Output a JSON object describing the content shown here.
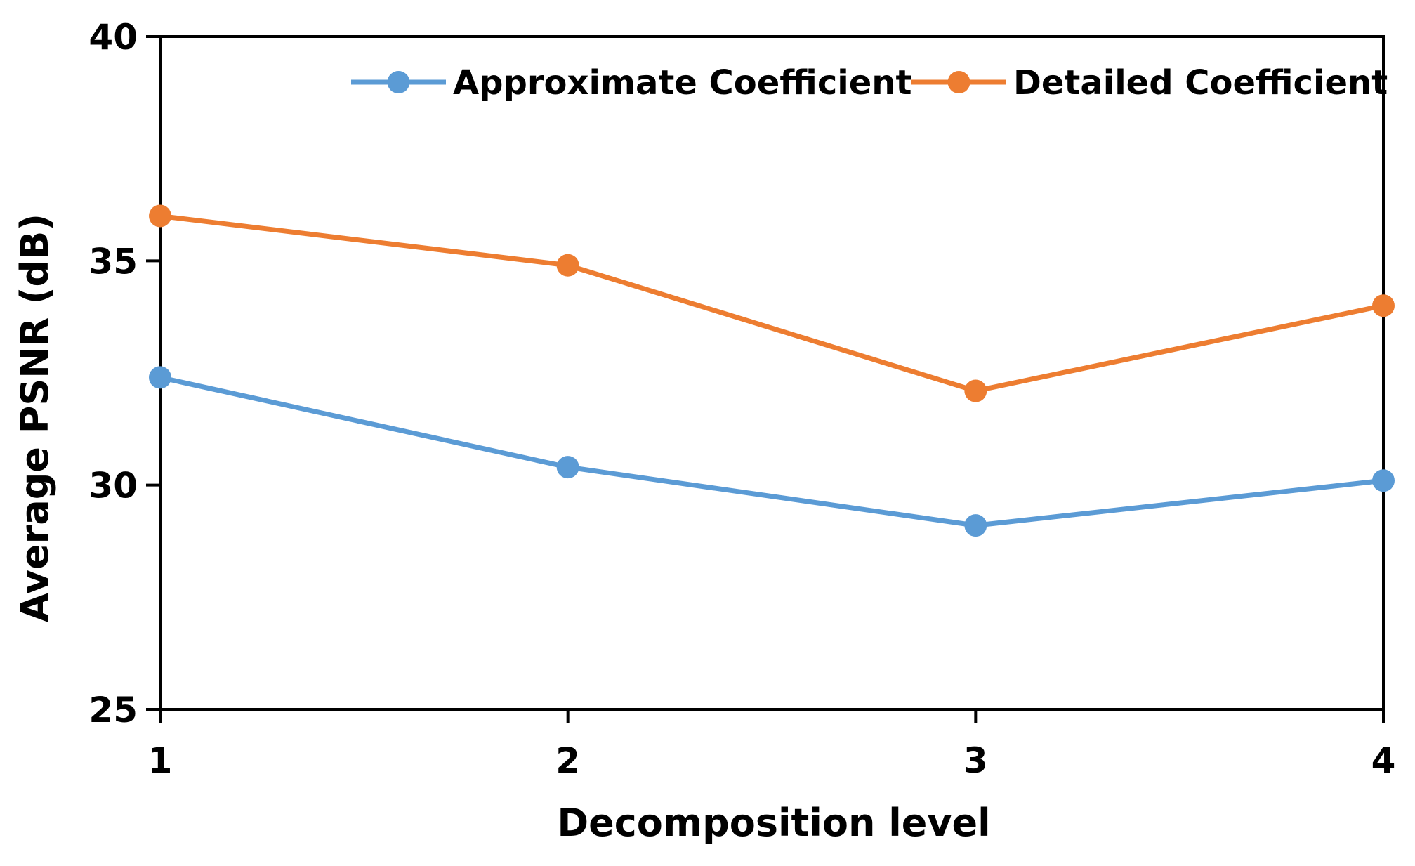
{
  "chart_data": {
    "type": "line",
    "title": "",
    "xlabel": "Decomposition level",
    "ylabel": "Average PSNR (dB)",
    "categories": [
      "1",
      "2",
      "3",
      "4"
    ],
    "x": [
      1,
      2,
      3,
      4
    ],
    "xlim": [
      1,
      4
    ],
    "ylim": [
      25,
      40
    ],
    "yticks": [
      25,
      30,
      35,
      40
    ],
    "ytick_labels": [
      "25",
      "30",
      "35",
      "40"
    ],
    "grid": false,
    "legend_position": "top-right",
    "series": [
      {
        "name": "Approximate Coefficient",
        "color": "#5B9BD5",
        "values": [
          32.4,
          30.4,
          29.1,
          30.1
        ]
      },
      {
        "name": "Detailed Coefficient",
        "color": "#ED7D31",
        "values": [
          36.0,
          34.9,
          32.1,
          34.0
        ]
      }
    ]
  }
}
